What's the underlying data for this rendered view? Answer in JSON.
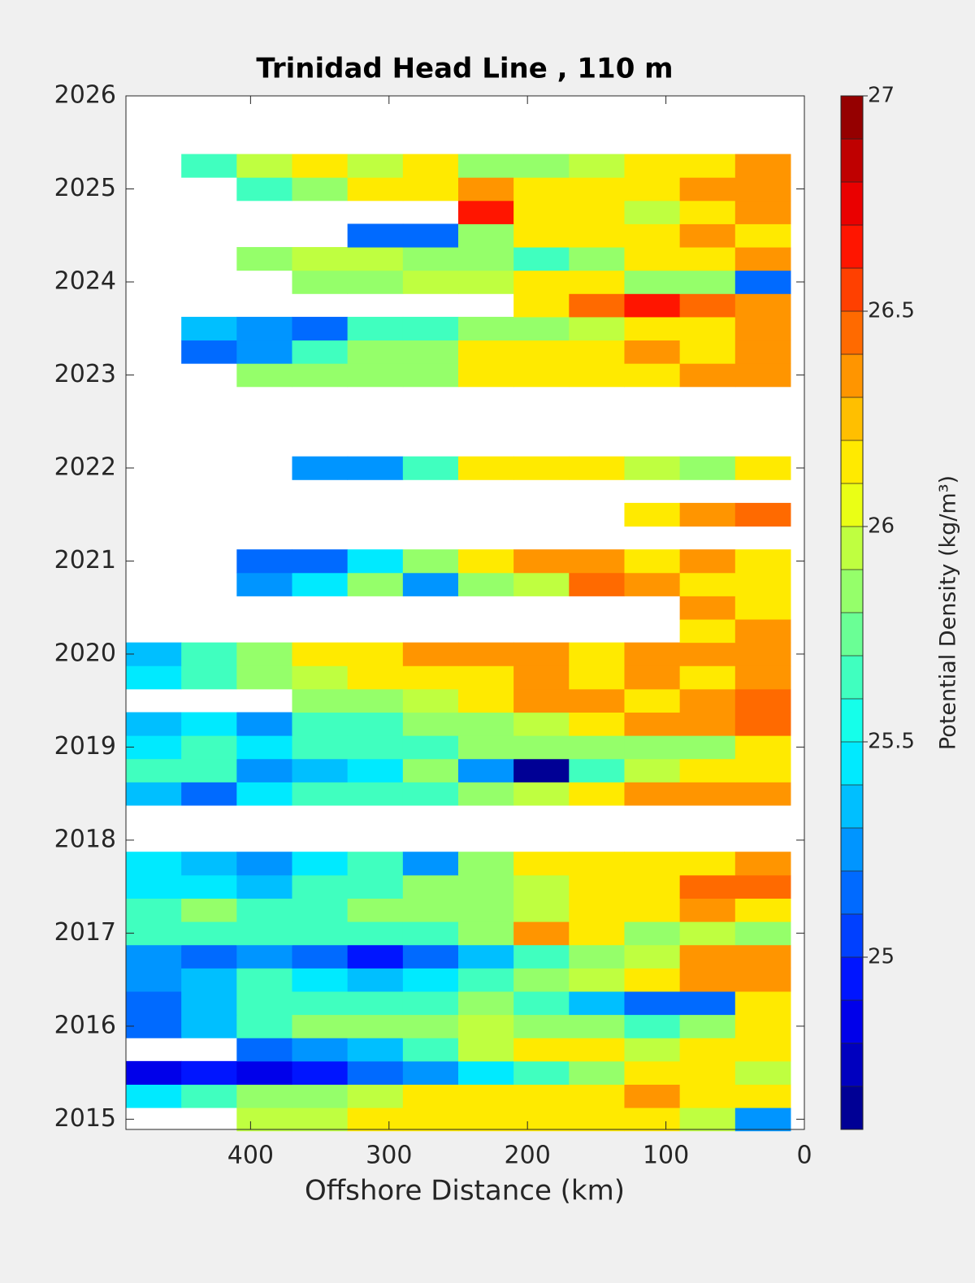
{
  "chart_data": {
    "type": "contourf",
    "title": "Trinidad Head Line , 110 m",
    "xlabel": "Offshore Distance (km)",
    "colorbar_label": "Potential Density (kg/m³)",
    "xlim": [
      490,
      0
    ],
    "xticks": [
      400,
      300,
      200,
      100,
      0
    ],
    "ylim": [
      2014.89,
      2026
    ],
    "yticks": [
      2015,
      2016,
      2017,
      2018,
      2019,
      2020,
      2021,
      2022,
      2023,
      2024,
      2025,
      2026
    ],
    "clim": [
      24.6,
      27
    ],
    "levels": 24,
    "cticks": [
      25,
      25.5,
      26,
      26.5,
      27
    ],
    "colormap": "jet",
    "x": [
      470,
      430,
      390,
      350,
      310,
      270,
      230,
      190,
      150,
      110,
      70,
      30
    ],
    "y": [
      2015,
      2015.25,
      2015.5,
      2015.75,
      2016,
      2016.25,
      2016.5,
      2016.75,
      2017,
      2017.25,
      2017.5,
      2017.75,
      2018,
      2018.25,
      2018.5,
      2018.75,
      2019,
      2019.25,
      2019.5,
      2019.75,
      2020,
      2020.25,
      2020.5,
      2020.75,
      2021,
      2021.25,
      2021.5,
      2021.75,
      2022,
      2022.25,
      2022.5,
      2022.75,
      2023,
      2023.25,
      2023.5,
      2023.75,
      2024,
      2024.25,
      2024.5,
      2024.75,
      2025,
      2025.25
    ],
    "z": [
      [
        null,
        null,
        26.0,
        26.0,
        26.1,
        26.1,
        26.1,
        26.1,
        26.1,
        26.1,
        26.0,
        25.3
      ],
      [
        25.5,
        25.6,
        25.8,
        25.9,
        26.0,
        26.1,
        26.1,
        26.2,
        26.1,
        26.3,
        26.2,
        26.1
      ],
      [
        24.9,
        25.0,
        24.9,
        25.0,
        25.1,
        25.3,
        25.5,
        25.7,
        25.8,
        26.1,
        26.2,
        26.0
      ],
      [
        null,
        null,
        25.2,
        25.3,
        25.4,
        25.7,
        26.0,
        26.1,
        26.1,
        26.0,
        26.1,
        26.2
      ],
      [
        25.2,
        25.4,
        25.7,
        25.8,
        25.9,
        25.9,
        26.0,
        25.9,
        25.8,
        25.7,
        25.9,
        26.1
      ],
      [
        25.1,
        25.4,
        25.6,
        25.7,
        25.6,
        25.7,
        25.8,
        25.7,
        25.4,
        25.1,
        25.2,
        26.2
      ],
      [
        25.3,
        25.4,
        25.7,
        25.5,
        25.4,
        25.5,
        25.7,
        25.8,
        26.0,
        26.2,
        26.3,
        26.4
      ],
      [
        25.3,
        25.2,
        25.3,
        25.1,
        25.0,
        25.2,
        25.4,
        25.6,
        25.8,
        26.0,
        26.3,
        26.4
      ],
      [
        25.6,
        25.6,
        25.6,
        25.7,
        25.6,
        25.6,
        25.8,
        26.3,
        26.2,
        25.9,
        26.0,
        25.8
      ],
      [
        25.7,
        25.8,
        25.7,
        25.7,
        25.8,
        25.8,
        25.9,
        26.0,
        26.1,
        26.2,
        26.3,
        26.1
      ],
      [
        25.5,
        25.5,
        25.4,
        25.6,
        25.7,
        25.8,
        25.9,
        26.0,
        26.1,
        26.2,
        26.5,
        26.5
      ],
      [
        25.5,
        25.4,
        25.3,
        25.5,
        25.6,
        25.3,
        25.9,
        26.1,
        26.2,
        26.2,
        26.2,
        26.3
      ],
      [
        null,
        null,
        null,
        null,
        null,
        null,
        null,
        null,
        null,
        null,
        null,
        null
      ],
      [
        null,
        null,
        null,
        null,
        null,
        null,
        null,
        null,
        null,
        null,
        null,
        null
      ],
      [
        25.4,
        25.1,
        25.5,
        25.6,
        25.7,
        25.6,
        25.9,
        26.0,
        26.2,
        26.3,
        26.4,
        26.3
      ],
      [
        25.6,
        25.7,
        25.3,
        25.4,
        25.5,
        25.8,
        25.3,
        24.7,
        25.6,
        26.0,
        26.2,
        26.2
      ],
      [
        25.5,
        25.6,
        25.5,
        25.6,
        25.6,
        25.7,
        25.9,
        25.9,
        25.8,
        25.9,
        25.9,
        26.1
      ],
      [
        25.4,
        25.5,
        25.3,
        25.6,
        25.7,
        25.8,
        25.9,
        26.0,
        26.2,
        26.3,
        26.4,
        26.5
      ],
      [
        null,
        null,
        null,
        25.8,
        25.9,
        26.0,
        26.2,
        26.3,
        26.3,
        26.2,
        26.4,
        26.5
      ],
      [
        25.5,
        25.6,
        25.8,
        26.0,
        26.2,
        26.1,
        26.2,
        26.3,
        26.2,
        26.3,
        26.2,
        26.4
      ],
      [
        25.4,
        25.6,
        25.8,
        26.1,
        26.2,
        26.3,
        26.4,
        26.3,
        26.2,
        26.3,
        26.3,
        26.4
      ],
      [
        null,
        null,
        null,
        null,
        null,
        null,
        null,
        null,
        null,
        null,
        26.2,
        26.3
      ],
      [
        null,
        null,
        null,
        null,
        null,
        null,
        null,
        null,
        null,
        null,
        26.3,
        26.2
      ],
      [
        null,
        null,
        25.3,
        25.5,
        25.8,
        25.3,
        25.9,
        26.0,
        26.5,
        26.3,
        26.2,
        26.1
      ],
      [
        null,
        null,
        25.1,
        25.2,
        25.5,
        25.8,
        26.1,
        26.3,
        26.3,
        26.2,
        26.3,
        26.2
      ],
      [
        null,
        null,
        null,
        null,
        null,
        null,
        null,
        null,
        null,
        null,
        null,
        null
      ],
      [
        null,
        null,
        null,
        null,
        null,
        null,
        null,
        null,
        null,
        26.1,
        26.4,
        26.5
      ],
      [
        null,
        null,
        null,
        null,
        null,
        null,
        null,
        null,
        null,
        null,
        null,
        null
      ],
      [
        null,
        null,
        null,
        25.3,
        25.3,
        25.6,
        26.1,
        26.1,
        26.1,
        26.0,
        25.9,
        26.1
      ],
      [
        null,
        null,
        null,
        null,
        null,
        null,
        null,
        null,
        null,
        null,
        null,
        null
      ],
      [
        null,
        null,
        null,
        null,
        null,
        null,
        null,
        null,
        null,
        null,
        null,
        null
      ],
      [
        null,
        null,
        null,
        null,
        null,
        null,
        null,
        null,
        null,
        null,
        null,
        null
      ],
      [
        null,
        null,
        25.8,
        25.9,
        25.8,
        25.9,
        26.1,
        26.2,
        26.1,
        26.2,
        26.3,
        26.3
      ],
      [
        null,
        25.2,
        25.3,
        25.6,
        25.8,
        25.8,
        26.1,
        26.2,
        26.1,
        26.3,
        26.2,
        26.4
      ],
      [
        null,
        25.4,
        25.3,
        25.2,
        25.6,
        25.7,
        25.8,
        25.9,
        26.0,
        26.1,
        26.2,
        26.3
      ],
      [
        null,
        null,
        null,
        null,
        null,
        null,
        null,
        26.2,
        26.5,
        26.7,
        26.5,
        26.3
      ],
      [
        null,
        null,
        null,
        25.9,
        25.9,
        26.0,
        26.0,
        26.1,
        26.1,
        25.8,
        25.8,
        25.2
      ],
      [
        null,
        null,
        25.9,
        26.0,
        26.0,
        25.9,
        25.8,
        25.7,
        25.8,
        26.1,
        26.1,
        26.3
      ],
      [
        null,
        null,
        null,
        null,
        25.1,
        25.2,
        25.8,
        26.1,
        26.2,
        26.2,
        26.3,
        26.2
      ],
      [
        null,
        null,
        null,
        null,
        null,
        null,
        26.6,
        26.1,
        26.2,
        26.0,
        26.2,
        26.3
      ],
      [
        null,
        null,
        25.7,
        25.9,
        26.1,
        26.2,
        26.3,
        26.2,
        26.2,
        26.1,
        26.3,
        26.3
      ],
      [
        null,
        25.7,
        26.0,
        26.1,
        26.0,
        26.1,
        25.9,
        25.8,
        26.0,
        26.1,
        26.2,
        26.4
      ]
    ]
  }
}
